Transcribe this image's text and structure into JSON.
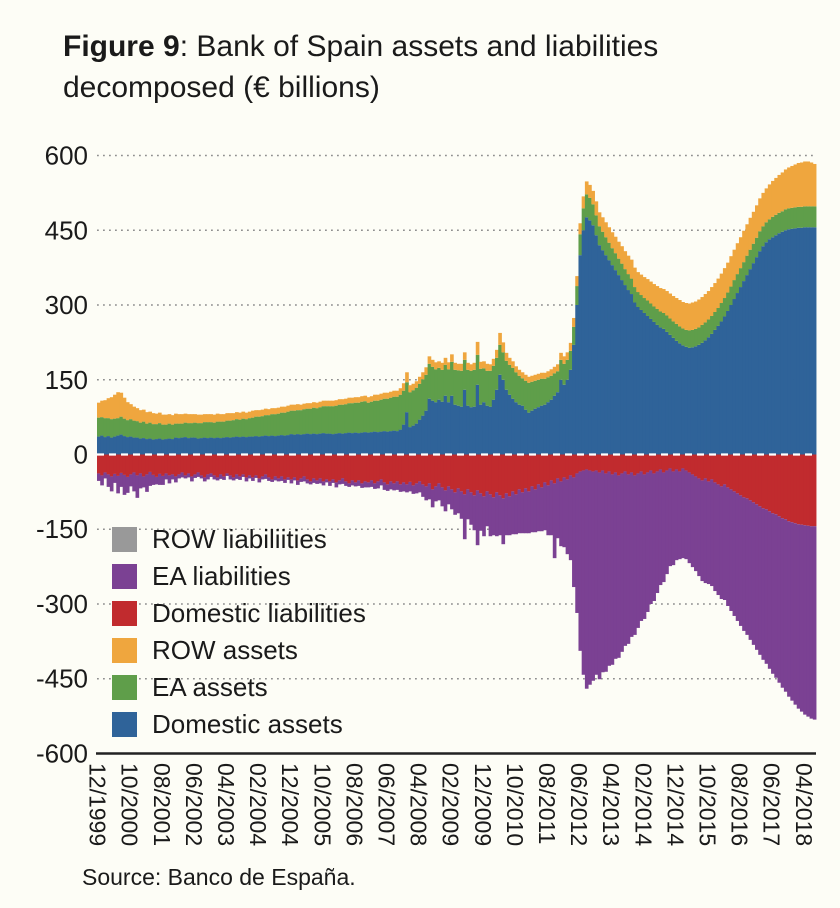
{
  "title": {
    "prefix": "Figure 9",
    "rest": ": Bank of Spain assets and liabilities",
    "line2": "decomposed (€ billions)"
  },
  "source": "Source: Banco de España.",
  "legend": [
    {
      "label": "ROW liabiliities",
      "color": "#999999"
    },
    {
      "label": "EA liabilities",
      "color": "#7b4193"
    },
    {
      "label": "Domestic liabilities",
      "color": "#c12b2e"
    },
    {
      "label": "ROW assets",
      "color": "#efa63e"
    },
    {
      "label": "EA assets",
      "color": "#5f9e4a"
    },
    {
      "label": "Domestic assets",
      "color": "#2f6399"
    }
  ],
  "chart_data": {
    "type": "bar",
    "stacked": true,
    "x_unit": "month",
    "x_start": "12/1999",
    "x_end": "07/2018",
    "x_tick_every": 10,
    "x_tick_labels": [
      "12/1999",
      "10/2000",
      "08/2001",
      "06/2002",
      "04/2003",
      "02/2004",
      "12/2004",
      "10/2005",
      "08/2006",
      "06/2007",
      "04/2008",
      "02/2009",
      "12/2009",
      "10/2010",
      "08/2011",
      "06/2012",
      "04/2013",
      "02/2014",
      "12/2014",
      "10/2015",
      "08/2016",
      "06/2017",
      "04/2018"
    ],
    "ylim": [
      -600,
      600
    ],
    "y_ticks": [
      600,
      450,
      300,
      150,
      0,
      -150,
      -300,
      -450,
      -600
    ],
    "grid": "dotted horizontal",
    "legend_position": "inside lower-left",
    "series": [
      {
        "name": "Domestic assets",
        "stack": "assets",
        "color": "#2f6399",
        "values": [
          36,
          38,
          35,
          37,
          34,
          36,
          38,
          40,
          37,
          35,
          36,
          34,
          34,
          32,
          33,
          31,
          32,
          30,
          31,
          32,
          30,
          31,
          32,
          31,
          34,
          33,
          34,
          35,
          33,
          34,
          34,
          32,
          33,
          34,
          33,
          34,
          33,
          34,
          33,
          34,
          35,
          34,
          35,
          36,
          35,
          36,
          35,
          36,
          36,
          37,
          36,
          37,
          38,
          37,
          38,
          37,
          38,
          39,
          38,
          39,
          41,
          40,
          41,
          40,
          41,
          42,
          41,
          42,
          41,
          42,
          43,
          42,
          42,
          41,
          42,
          43,
          42,
          43,
          44,
          43,
          44,
          43,
          44,
          45,
          44,
          45,
          46,
          45,
          46,
          47,
          46,
          47,
          48,
          47,
          50,
          60,
          85,
          55,
          58,
          62,
          70,
          78,
          88,
          112,
          108,
          105,
          110,
          106,
          118,
          105,
          118,
          100,
          98,
          96,
          130,
          98,
          95,
          96,
          140,
          100,
          105,
          98,
          96,
          110,
          130,
          160,
          150,
          130,
          120,
          112,
          105,
          100,
          98,
          90,
          84,
          88,
          92,
          95,
          98,
          100,
          105,
          110,
          118,
          125,
          150,
          140,
          150,
          170,
          220,
          300,
          400,
          450,
          476,
          470,
          460,
          440,
          420,
          410,
          400,
          390,
          380,
          370,
          360,
          350,
          340,
          330,
          322,
          305,
          296,
          290,
          284,
          278,
          272,
          266,
          260,
          255,
          252,
          246,
          240,
          234,
          228,
          223,
          219,
          216,
          214,
          215,
          217,
          220,
          224,
          229,
          235,
          242,
          250,
          258,
          267,
          277,
          288,
          300,
          312,
          324,
          336,
          348,
          360,
          372,
          384,
          396,
          408,
          418,
          426,
          432,
          436,
          440,
          444,
          447,
          450,
          452,
          453,
          454,
          455,
          455,
          456,
          456,
          456,
          456
        ]
      },
      {
        "name": "EA assets",
        "stack": "assets",
        "color": "#5f9e4a",
        "values": [
          38,
          37,
          38,
          36,
          37,
          36,
          35,
          36,
          35,
          34,
          35,
          34,
          33,
          32,
          33,
          31,
          32,
          31,
          30,
          31,
          30,
          29,
          30,
          29,
          28,
          29,
          28,
          29,
          30,
          29,
          30,
          31,
          30,
          31,
          32,
          31,
          31,
          32,
          33,
          32,
          33,
          34,
          34,
          35,
          35,
          36,
          36,
          37,
          38,
          39,
          40,
          40,
          41,
          42,
          43,
          44,
          44,
          45,
          46,
          47,
          47,
          48,
          48,
          49,
          50,
          50,
          51,
          52,
          52,
          53,
          54,
          55,
          55,
          56,
          56,
          57,
          58,
          58,
          59,
          60,
          60,
          61,
          62,
          62,
          60,
          61,
          62,
          63,
          64,
          65,
          66,
          67,
          68,
          69,
          70,
          68,
          60,
          70,
          71,
          72,
          72,
          73,
          72,
          70,
          68,
          66,
          64,
          64,
          62,
          66,
          68,
          70,
          71,
          72,
          60,
          72,
          73,
          74,
          60,
          72,
          68,
          70,
          72,
          68,
          64,
          60,
          55,
          58,
          60,
          62,
          60,
          58,
          55,
          58,
          60,
          58,
          56,
          55,
          54,
          52,
          50,
          48,
          45,
          42,
          40,
          42,
          40,
          38,
          36,
          38,
          42,
          44,
          46,
          45,
          42,
          40,
          38,
          37,
          36,
          35,
          34,
          34,
          33,
          33,
          32,
          32,
          31,
          31,
          30,
          30,
          30,
          31,
          31,
          31,
          32,
          32,
          32,
          33,
          33,
          33,
          34,
          34,
          34,
          34,
          35,
          35,
          35,
          35,
          36,
          36,
          36,
          36,
          36,
          36,
          37,
          37,
          37,
          37,
          38,
          38,
          38,
          38,
          39,
          39,
          39,
          39,
          40,
          40,
          40,
          40,
          41,
          41,
          41,
          41,
          42,
          42,
          42,
          42,
          42,
          42,
          42,
          42,
          42,
          42
        ]
      },
      {
        "name": "ROW assets",
        "stack": "assets",
        "color": "#efa63e",
        "values": [
          30,
          33,
          36,
          40,
          44,
          48,
          52,
          48,
          42,
          36,
          30,
          28,
          26,
          25,
          24,
          23,
          22,
          22,
          21,
          21,
          20,
          20,
          19,
          19,
          20,
          19,
          19,
          18,
          18,
          18,
          17,
          17,
          17,
          16,
          16,
          16,
          16,
          16,
          15,
          15,
          15,
          15,
          14,
          14,
          14,
          14,
          13,
          13,
          14,
          13,
          13,
          13,
          13,
          12,
          12,
          12,
          12,
          12,
          12,
          12,
          12,
          12,
          12,
          11,
          11,
          11,
          11,
          11,
          11,
          11,
          11,
          11,
          11,
          11,
          11,
          11,
          11,
          11,
          11,
          11,
          11,
          11,
          11,
          11,
          11,
          11,
          12,
          12,
          12,
          12,
          12,
          12,
          12,
          12,
          13,
          15,
          20,
          14,
          13,
          13,
          14,
          14,
          15,
          15,
          14,
          14,
          13,
          14,
          14,
          14,
          15,
          14,
          13,
          14,
          15,
          14,
          13,
          14,
          26,
          14,
          14,
          14,
          13,
          14,
          16,
          24,
          20,
          16,
          14,
          13,
          12,
          12,
          12,
          12,
          12,
          12,
          12,
          12,
          12,
          12,
          12,
          13,
          13,
          14,
          14,
          15,
          15,
          16,
          18,
          20,
          22,
          24,
          26,
          26,
          27,
          28,
          28,
          29,
          30,
          31,
          32,
          33,
          34,
          35,
          36,
          37,
          38,
          39,
          40,
          41,
          42,
          43,
          44,
          45,
          46,
          47,
          48,
          49,
          50,
          51,
          52,
          53,
          53,
          54,
          54,
          55,
          55,
          56,
          56,
          57,
          57,
          58,
          58,
          59,
          59,
          60,
          60,
          61,
          61,
          62,
          62,
          63,
          63,
          64,
          64,
          65,
          66,
          67,
          68,
          70,
          72,
          74,
          76,
          78,
          80,
          82,
          84,
          86,
          88,
          89,
          90,
          90,
          88,
          85
        ]
      },
      {
        "name": "Domestic liabilities",
        "stack": "liabilities",
        "color": "#c12b2e",
        "values": [
          -38,
          -42,
          -36,
          -40,
          -44,
          -39,
          -43,
          -37,
          -41,
          -45,
          -40,
          -36,
          -42,
          -38,
          -44,
          -40,
          -35,
          -41,
          -45,
          -39,
          -43,
          -38,
          -42,
          -40,
          -44,
          -40,
          -36,
          -42,
          -38,
          -44,
          -40,
          -36,
          -42,
          -46,
          -40,
          -38,
          -42,
          -46,
          -40,
          -44,
          -38,
          -42,
          -46,
          -40,
          -44,
          -40,
          -46,
          -42,
          -46,
          -42,
          -48,
          -44,
          -40,
          -46,
          -50,
          -44,
          -48,
          -44,
          -50,
          -46,
          -50,
          -46,
          -52,
          -48,
          -44,
          -50,
          -54,
          -48,
          -52,
          -48,
          -54,
          -50,
          -54,
          -50,
          -56,
          -52,
          -48,
          -54,
          -58,
          -52,
          -56,
          -52,
          -58,
          -54,
          -56,
          -52,
          -58,
          -54,
          -50,
          -56,
          -60,
          -54,
          -58,
          -54,
          -60,
          -56,
          -60,
          -55,
          -62,
          -58,
          -54,
          -60,
          -64,
          -58,
          -70,
          -64,
          -58,
          -66,
          -72,
          -64,
          -70,
          -76,
          -68,
          -74,
          -80,
          -70,
          -76,
          -82,
          -72,
          -78,
          -84,
          -74,
          -80,
          -86,
          -76,
          -82,
          -88,
          -78,
          -84,
          -74,
          -80,
          -70,
          -76,
          -68,
          -74,
          -64,
          -70,
          -60,
          -66,
          -56,
          -62,
          -52,
          -58,
          -48,
          -54,
          -46,
          -50,
          -42,
          -46,
          -38,
          -34,
          -32,
          -30,
          -32,
          -34,
          -32,
          -36,
          -32,
          -38,
          -34,
          -40,
          -36,
          -42,
          -38,
          -34,
          -40,
          -36,
          -42,
          -38,
          -34,
          -40,
          -36,
          -32,
          -38,
          -34,
          -30,
          -36,
          -32,
          -28,
          -34,
          -30,
          -34,
          -28,
          -32,
          -36,
          -40,
          -44,
          -48,
          -52,
          -48,
          -54,
          -50,
          -56,
          -60,
          -64,
          -60,
          -66,
          -70,
          -74,
          -78,
          -82,
          -86,
          -88,
          -92,
          -96,
          -100,
          -104,
          -108,
          -110,
          -114,
          -118,
          -120,
          -124,
          -128,
          -130,
          -134,
          -136,
          -138,
          -140,
          -141,
          -142,
          -143,
          -144,
          -144
        ]
      },
      {
        "name": "EA liabilities",
        "stack": "liabilities",
        "color": "#7b4193",
        "values": [
          -15,
          -20,
          -12,
          -25,
          -30,
          -18,
          -35,
          -28,
          -40,
          -32,
          -24,
          -38,
          -45,
          -30,
          -22,
          -35,
          -28,
          -20,
          -15,
          -22,
          -18,
          -12,
          -16,
          -10,
          -12,
          -8,
          -10,
          -6,
          -8,
          -10,
          -7,
          -9,
          -6,
          -8,
          -10,
          -7,
          -8,
          -6,
          -9,
          -7,
          -5,
          -8,
          -6,
          -9,
          -7,
          -5,
          -8,
          -6,
          -7,
          -5,
          -8,
          -6,
          -9,
          -7,
          -5,
          -8,
          -6,
          -9,
          -7,
          -5,
          -8,
          -6,
          -9,
          -7,
          -10,
          -8,
          -6,
          -9,
          -7,
          -10,
          -8,
          -6,
          -9,
          -7,
          -10,
          -8,
          -11,
          -9,
          -7,
          -10,
          -8,
          -11,
          -9,
          -12,
          -10,
          -13,
          -11,
          -14,
          -12,
          -15,
          -13,
          -16,
          -14,
          -17,
          -15,
          -18,
          -16,
          -19,
          -17,
          -20,
          -22,
          -25,
          -28,
          -32,
          -36,
          -30,
          -34,
          -38,
          -42,
          -36,
          -40,
          -45,
          -50,
          -55,
          -90,
          -60,
          -65,
          -70,
          -110,
          -75,
          -80,
          -70,
          -84,
          -76,
          -88,
          -80,
          -92,
          -84,
          -78,
          -86,
          -80,
          -88,
          -82,
          -90,
          -84,
          -92,
          -86,
          -94,
          -88,
          -96,
          -100,
          -110,
          -150,
          -120,
          -130,
          -140,
          -150,
          -170,
          -220,
          -280,
          -360,
          -410,
          -440,
          -430,
          -420,
          -410,
          -415,
          -405,
          -398,
          -390,
          -382,
          -374,
          -366,
          -358,
          -350,
          -340,
          -330,
          -320,
          -310,
          -300,
          -290,
          -280,
          -268,
          -256,
          -244,
          -232,
          -220,
          -208,
          -196,
          -188,
          -182,
          -176,
          -180,
          -178,
          -182,
          -186,
          -190,
          -196,
          -202,
          -210,
          -206,
          -214,
          -218,
          -222,
          -226,
          -232,
          -238,
          -244,
          -250,
          -256,
          -262,
          -268,
          -274,
          -280,
          -286,
          -292,
          -298,
          -304,
          -310,
          -316,
          -322,
          -328,
          -334,
          -340,
          -346,
          -352,
          -358,
          -364,
          -370,
          -375,
          -380,
          -383,
          -386,
          -388
        ]
      },
      {
        "name": "ROW liabilities",
        "stack": "liabilities",
        "color": "#999999",
        "note": "not visible in plot (≈0 throughout)",
        "values": []
      }
    ]
  }
}
